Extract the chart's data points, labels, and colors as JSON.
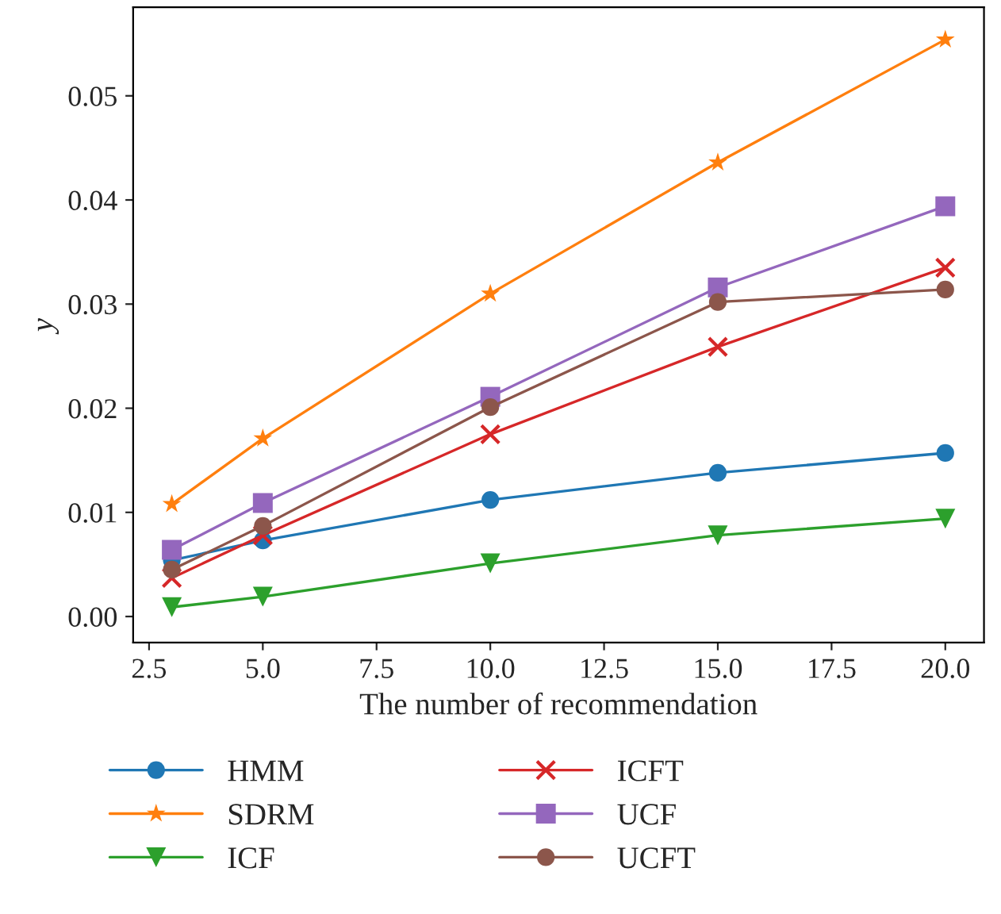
{
  "chart_data": {
    "type": "line",
    "xlabel": "The number of recommendation",
    "ylabel": "y",
    "x": [
      3,
      5,
      10,
      15,
      20
    ],
    "series": [
      {
        "name": "HMM",
        "color": "#1f77b4",
        "marker": "circle",
        "values": [
          0.0054,
          0.0073,
          0.0112,
          0.0138,
          0.0157
        ]
      },
      {
        "name": "SDRM",
        "color": "#ff7f0e",
        "marker": "star",
        "values": [
          0.0108,
          0.0171,
          0.031,
          0.0436,
          0.0554
        ]
      },
      {
        "name": "ICF",
        "color": "#2ca02c",
        "marker": "triangle",
        "values": [
          0.0009,
          0.0019,
          0.0051,
          0.0078,
          0.0094
        ]
      },
      {
        "name": "ICFT",
        "color": "#d62728",
        "marker": "cross",
        "values": [
          0.0037,
          0.0078,
          0.0175,
          0.0259,
          0.0335
        ]
      },
      {
        "name": "UCF",
        "color": "#9467bd",
        "marker": "square",
        "values": [
          0.0064,
          0.0109,
          0.0211,
          0.0316,
          0.0394
        ]
      },
      {
        "name": "UCFT",
        "color": "#8c564b",
        "marker": "circle",
        "values": [
          0.0045,
          0.0087,
          0.0201,
          0.0302,
          0.0314
        ]
      }
    ],
    "xlim": [
      2.15,
      20.85
    ],
    "ylim": [
      -0.0025,
      0.0585
    ],
    "xticks": [
      {
        "value": 2.5,
        "label": "2.5"
      },
      {
        "value": 5,
        "label": "5.0"
      },
      {
        "value": 7.5,
        "label": "7.5"
      },
      {
        "value": 10,
        "label": "10.0"
      },
      {
        "value": 12.5,
        "label": "12.5"
      },
      {
        "value": 15,
        "label": "15.0"
      },
      {
        "value": 17.5,
        "label": "17.5"
      },
      {
        "value": 20,
        "label": "20.0"
      }
    ],
    "yticks": [
      {
        "value": 0,
        "label": "0.00"
      },
      {
        "value": 0.01,
        "label": "0.01"
      },
      {
        "value": 0.02,
        "label": "0.02"
      },
      {
        "value": 0.03,
        "label": "0.03"
      },
      {
        "value": 0.04,
        "label": "0.04"
      },
      {
        "value": 0.05,
        "label": "0.05"
      }
    ],
    "legend": "bottom",
    "grid": false
  }
}
